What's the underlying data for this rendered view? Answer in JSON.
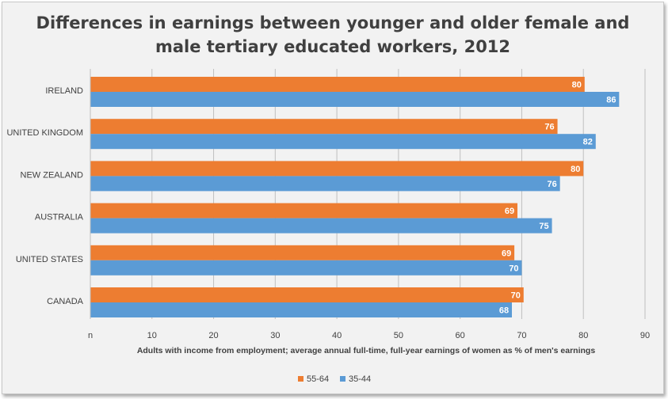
{
  "chart_data": {
    "type": "bar",
    "orientation": "horizontal",
    "title_lines": [
      "Differences in earnings between younger and older female and",
      "male tertiary educated workers, 2012"
    ],
    "categories": [
      "IRELAND",
      "UNITED KINGDOM",
      "NEW ZEALAND",
      "AUSTRALIA",
      "UNITED STATES",
      "CANADA"
    ],
    "series": [
      {
        "name": "55-64",
        "color": "#ed7d31",
        "values": [
          80,
          76,
          80,
          69,
          69,
          70
        ]
      },
      {
        "name": "35-44",
        "color": "#5b9bd5",
        "values": [
          86,
          82,
          76,
          75,
          70,
          68
        ]
      }
    ],
    "bar_extents": {
      "55-64": [
        80.2,
        75.8,
        80.0,
        69.3,
        68.8,
        70.3
      ],
      "35-44": [
        85.8,
        82.0,
        76.2,
        74.9,
        70.0,
        68.4
      ]
    },
    "xlim": [
      0,
      90
    ],
    "xticks": [
      10,
      20,
      30,
      40,
      50,
      60,
      70,
      80,
      90
    ],
    "xtick_labels": [
      "10",
      "20",
      "30",
      "40",
      "50",
      "60",
      "70",
      "80",
      "90"
    ],
    "x_origin_label": "n",
    "xlabel": "Adults with income from employment; average annual full-time, full-year earnings of women as % of men's earnings",
    "legend_position": "bottom-center",
    "grid": true
  }
}
